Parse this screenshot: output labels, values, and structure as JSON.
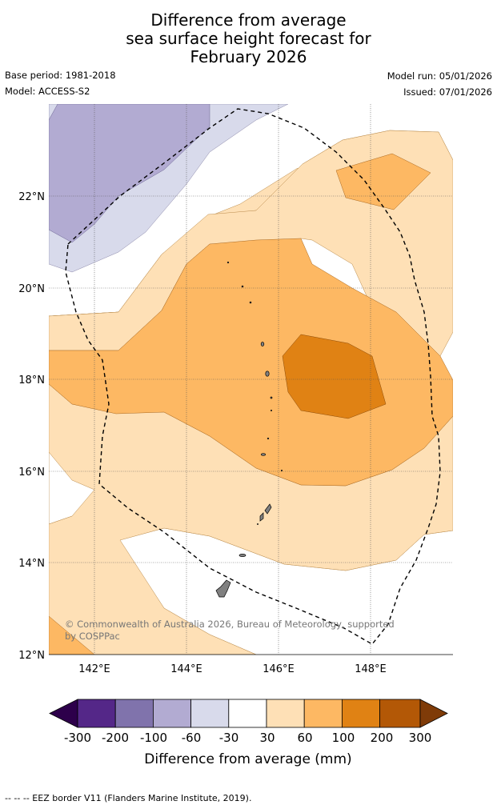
{
  "header": {
    "title_lines": [
      "Difference from average",
      "sea surface height forecast for",
      "February 2026"
    ],
    "base_period": "Base period: 1981-2018",
    "model": "Model: ACCESS-S2",
    "model_run": "Model run: 05/01/2026",
    "issued": "Issued: 07/01/2026"
  },
  "map": {
    "lon_ticks": [
      "142°E",
      "144°E",
      "146°E",
      "148°E"
    ],
    "lat_ticks": [
      "22°N",
      "20°N",
      "18°N",
      "16°N",
      "14°N",
      "12°N"
    ],
    "copyright_lines": [
      "© Commonwealth of Australia 2026, Bureau of Meteorology, supported",
      "by COSPPac"
    ],
    "eez_border_style": "dashed"
  },
  "colorbar": {
    "tick_labels": [
      "-300",
      "-200",
      "-100",
      "-60",
      "-30",
      "30",
      "60",
      "100",
      "200",
      "300"
    ],
    "colors": [
      "#2d004b",
      "#542788",
      "#8073ac",
      "#b2abd2",
      "#d8daeb",
      "#ffffff",
      "#fee0b6",
      "#fdb863",
      "#e08214",
      "#b35806",
      "#7f3b08"
    ],
    "title": "Difference from average (mm)"
  },
  "footnote": "--  --  -- EEZ border V11 (Flanders Marine Institute, 2019)."
}
